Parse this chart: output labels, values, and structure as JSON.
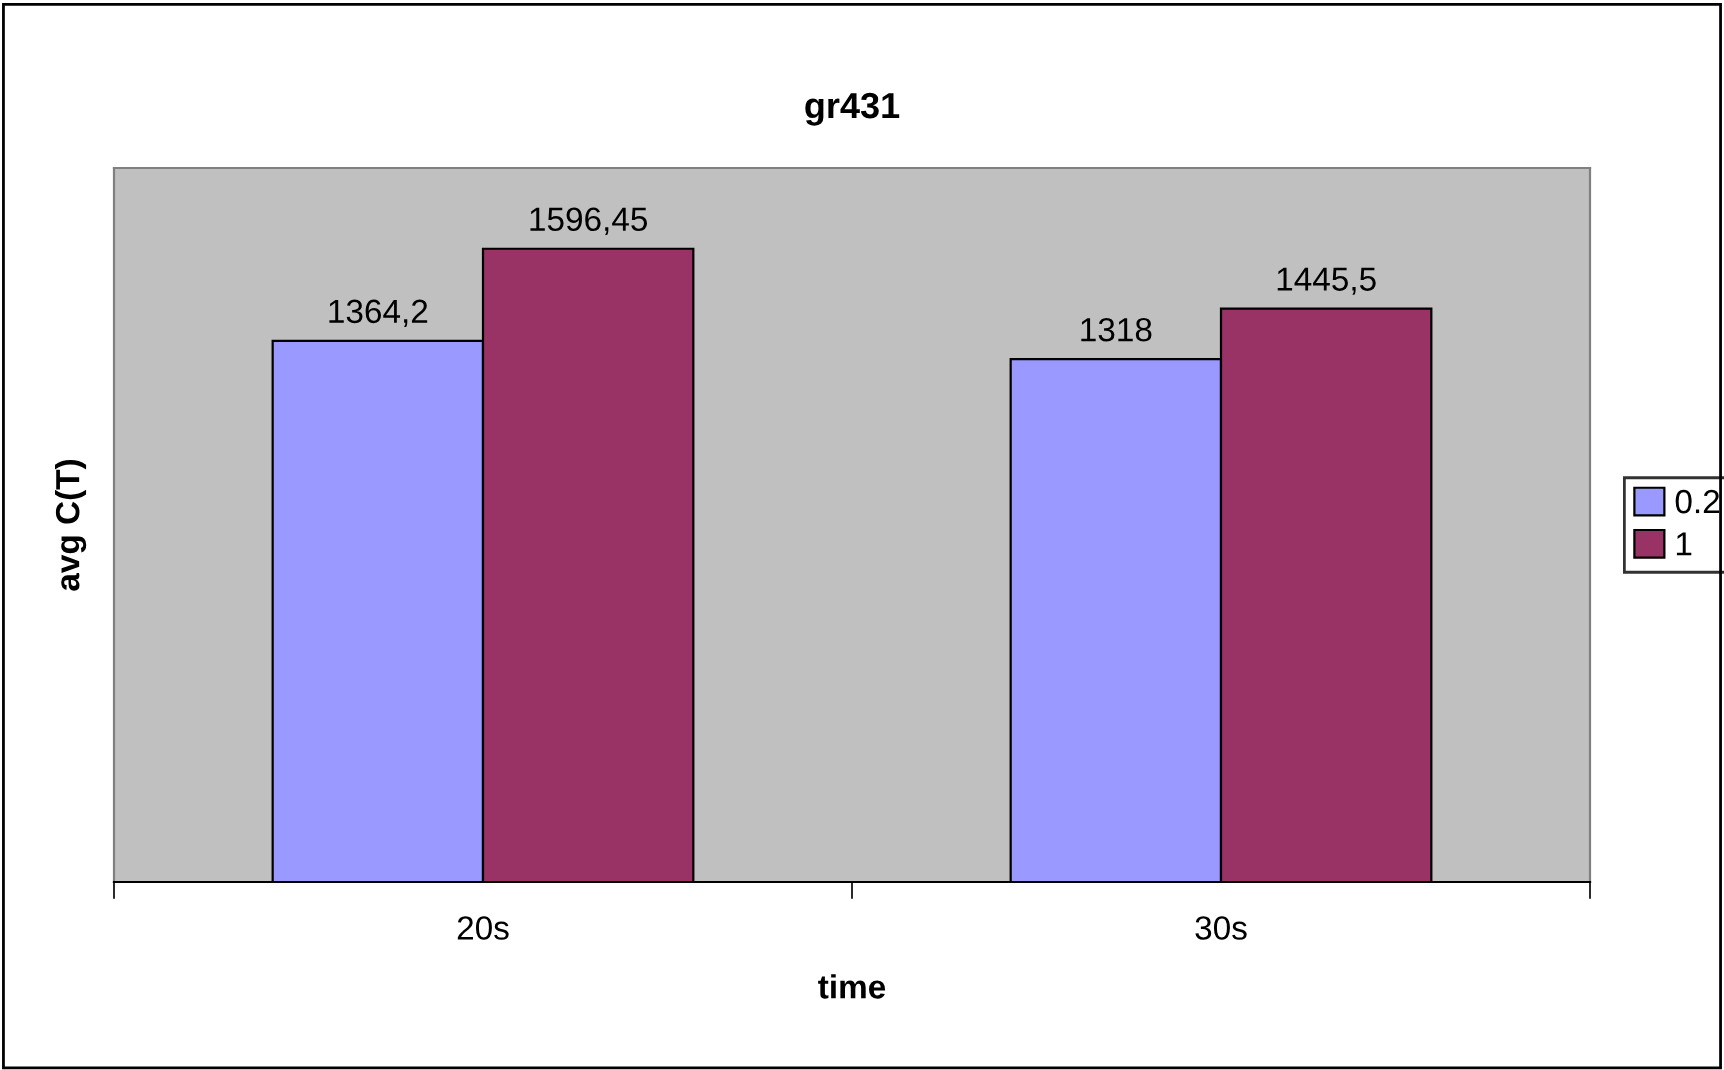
{
  "chart_data": {
    "type": "bar",
    "title": "gr431",
    "xlabel": "time",
    "ylabel": "avg C(T)",
    "categories": [
      "20s",
      "30s"
    ],
    "series": [
      {
        "name": "0.2",
        "color": "#9999ff",
        "values": [
          1364.2,
          1318
        ],
        "value_labels": [
          "1364,2",
          "1318"
        ]
      },
      {
        "name": "1",
        "color": "#993366",
        "values": [
          1596.45,
          1445.5
        ],
        "value_labels": [
          "1596,45",
          "1445,5"
        ]
      }
    ],
    "ylim": [
      0,
      1800
    ],
    "tick_labels": "x",
    "grid": false,
    "legend": "right"
  }
}
